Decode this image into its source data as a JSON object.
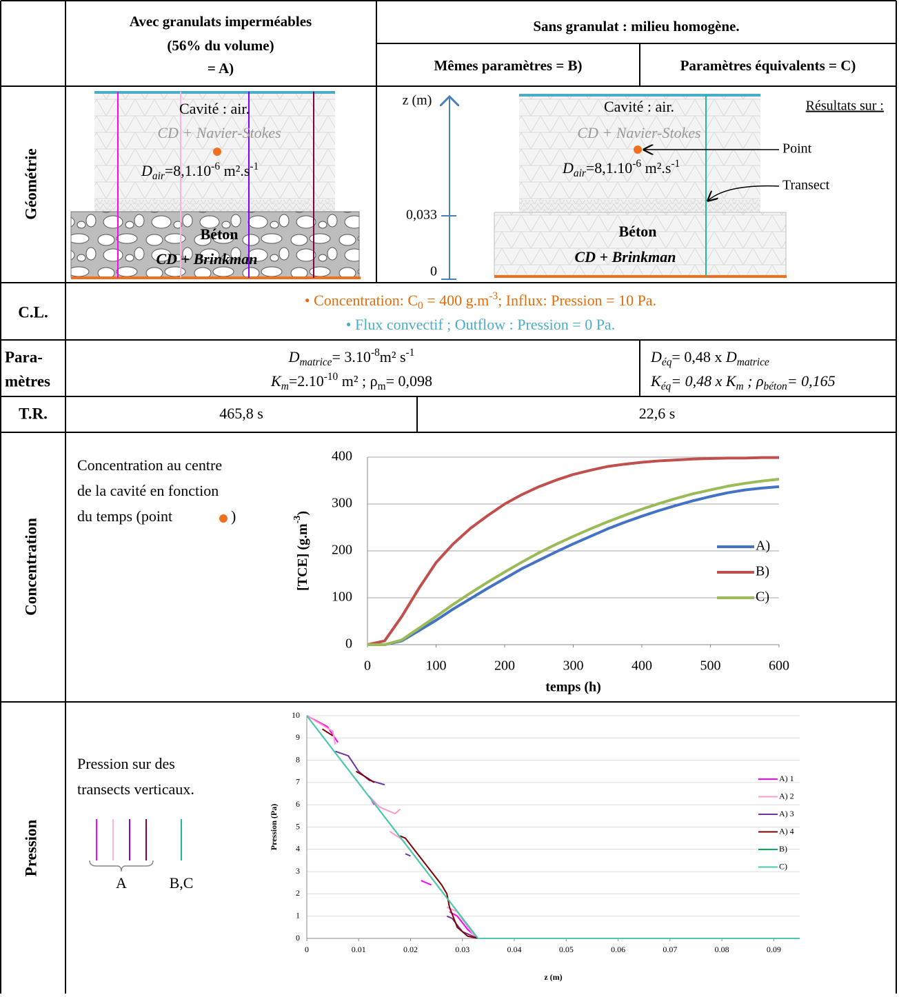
{
  "header": {
    "col_a": [
      "Avec granulats imperméables",
      "(56% du volume)",
      "= A)"
    ],
    "col_bc": "Sans granulat : milieu homogène.",
    "col_b": "Mêmes paramètres = B)",
    "col_c": "Paramètres équivalents = C)"
  },
  "row_labels": {
    "geometry": "Géométrie",
    "cl": "C.L.",
    "params": [
      "Para-",
      "mètres"
    ],
    "tr": "T.R.",
    "concentration": "Concentration",
    "pressure": "Pression"
  },
  "geometry": {
    "a": {
      "cavity": "Cavité : air.",
      "model": "CD + Navier-Stokes",
      "diffusion": [
        "D",
        "air",
        "=8,1.10",
        "-6",
        " m².s",
        "-1"
      ],
      "concrete": "Béton",
      "concrete_model": "CD + Brinkman"
    },
    "axis": {
      "label": "z (m)",
      "ticks": [
        "0,033",
        "0"
      ]
    },
    "bc": {
      "cavity": "Cavité : air.",
      "model": "CD + Navier-Stokes",
      "diffusion": [
        "D",
        "air",
        "=8,1.10",
        "-6",
        " m².s",
        "-1"
      ],
      "concrete": "Béton",
      "concrete_model": "CD + Brinkman",
      "results": "Résultats sur :",
      "point": "Point",
      "transect": "Transect"
    }
  },
  "boundary_conditions": [
    [
      "• Concentration: C",
      "0",
      " = 400 g.m",
      "-3",
      "; Influx: Pression = 10 Pa."
    ],
    [
      "• Flux convectif ; Outflow : Pression = 0 Pa."
    ]
  ],
  "parameters": {
    "ab": [
      [
        "D",
        "matrice",
        "= 3.10",
        "-8",
        "m² s",
        "-1"
      ],
      [
        "K",
        "m",
        "=2.10",
        "-10",
        " m² ; ρ",
        "m",
        "= 0,098"
      ]
    ],
    "c": [
      [
        "D",
        "éq",
        "= 0,48 x ",
        "D",
        "matrice"
      ],
      [
        "K",
        "éq",
        "= 0,48 x K",
        "m",
        " ; ρ",
        "béton",
        "= 0,165"
      ]
    ]
  },
  "tr": {
    "a": "465,8 s",
    "bc": "22,6 s"
  },
  "concentration_note": [
    "Concentration au centre",
    "de la cavité en fonction",
    "du temps (point",
    ")"
  ],
  "pressure_note": {
    "lines": [
      "Pression sur des",
      "transects verticaux."
    ],
    "groups": [
      "A",
      "B,C"
    ]
  },
  "chart_data": [
    {
      "type": "line",
      "xlabel": "temps (h)",
      "ylabel": [
        "[TCE] (g.m",
        "-3",
        ")"
      ],
      "x": [
        0,
        25,
        50,
        75,
        100,
        125,
        150,
        175,
        200,
        225,
        250,
        275,
        300,
        325,
        350,
        375,
        400,
        425,
        450,
        475,
        500,
        525,
        550,
        575,
        600
      ],
      "xlim": [
        0,
        600
      ],
      "xticks": [
        0,
        100,
        200,
        300,
        400,
        500,
        600
      ],
      "ylim": [
        0,
        400
      ],
      "yticks": [
        0,
        100,
        200,
        300,
        400
      ],
      "grid": true,
      "legend": "right",
      "series": [
        {
          "name": "A)",
          "color": "#4472c4",
          "values": [
            0,
            0,
            8,
            30,
            52,
            76,
            98,
            120,
            141,
            162,
            180,
            198,
            215,
            231,
            247,
            261,
            274,
            286,
            297,
            307,
            316,
            324,
            330,
            334,
            337
          ]
        },
        {
          "name": "B)",
          "color": "#c0504d",
          "values": [
            0,
            8,
            60,
            120,
            175,
            215,
            248,
            275,
            300,
            320,
            337,
            351,
            363,
            372,
            380,
            385,
            389,
            392,
            394,
            396,
            397,
            398,
            398,
            399,
            399
          ]
        },
        {
          "name": "C)",
          "color": "#9bbb59",
          "values": [
            0,
            0,
            10,
            35,
            60,
            86,
            110,
            133,
            155,
            176,
            196,
            214,
            231,
            247,
            262,
            276,
            289,
            301,
            312,
            322,
            330,
            338,
            344,
            349,
            353
          ]
        }
      ]
    },
    {
      "type": "line",
      "xlabel": "z (m)",
      "ylabel": [
        "Pression (Pa)"
      ],
      "xlim": [
        0,
        0.095
      ],
      "xticks": [
        0,
        0.01,
        0.02,
        0.03,
        0.04,
        0.05,
        0.06,
        0.07,
        0.08,
        0.09
      ],
      "ylim": [
        0,
        10
      ],
      "yticks": [
        0,
        1,
        2,
        3,
        4,
        5,
        6,
        7,
        8,
        9,
        10
      ],
      "grid": true,
      "legend": "right",
      "series": [
        {
          "name": "A) 1",
          "color": "#ff00ff",
          "x": [
            0,
            0.004,
            0.006,
            null,
            0.0125,
            0.013,
            null,
            0.022,
            0.024,
            null,
            0.0275,
            0.029,
            0.031,
            0.033,
            0.095
          ],
          "values": [
            10,
            9.5,
            8.8,
            null,
            6.2,
            6.0,
            null,
            2.6,
            2.4,
            null,
            1.2,
            1.0,
            0.4,
            0,
            0
          ]
        },
        {
          "name": "A) 2",
          "color": "#ff99cc",
          "x": [
            0,
            0.005,
            0.0055,
            null,
            0.012,
            0.014,
            0.017,
            0.018,
            null,
            0.016,
            0.018,
            0.019,
            null,
            0.027,
            0.029,
            0.032,
            0.033,
            0.095
          ],
          "values": [
            10,
            9.3,
            8.7,
            null,
            6.4,
            5.9,
            5.6,
            5.8,
            null,
            4.8,
            4.5,
            4.3,
            null,
            1.4,
            1.2,
            0.2,
            0,
            0
          ]
        },
        {
          "name": "A) 3",
          "color": "#7030a0",
          "x": [
            0.0055,
            0.008,
            0.01,
            0.012,
            0.015,
            null,
            0.019,
            0.02,
            null,
            0.027,
            0.028,
            0.03,
            0.033,
            0.095
          ],
          "values": [
            8.4,
            8.2,
            7.5,
            7.1,
            6.9,
            null,
            3.8,
            3.7,
            null,
            1.0,
            0.9,
            0.3,
            0,
            0
          ]
        },
        {
          "name": "A) 4",
          "color": "#800000",
          "x": [
            0.003,
            0.005,
            null,
            0.0095,
            0.011,
            0.013,
            null,
            0.018,
            0.019,
            0.02,
            0.022,
            0.024,
            0.026,
            0.027,
            0.0275,
            0.029,
            0.031,
            0.033,
            0.095
          ],
          "values": [
            9.4,
            9.1,
            null,
            7.5,
            7.3,
            7.0,
            null,
            4.6,
            4.5,
            4.2,
            3.6,
            3.0,
            2.4,
            2.0,
            1.4,
            0.5,
            0.1,
            0,
            0
          ]
        },
        {
          "name": "B)",
          "color": "#00b050",
          "x": [
            0,
            0.033,
            0.095
          ],
          "values": [
            10,
            0,
            0
          ]
        },
        {
          "name": "C)",
          "color": "#4bc8b0",
          "x": [
            0,
            0.033,
            0.095
          ],
          "values": [
            10,
            0,
            0
          ]
        }
      ]
    }
  ]
}
